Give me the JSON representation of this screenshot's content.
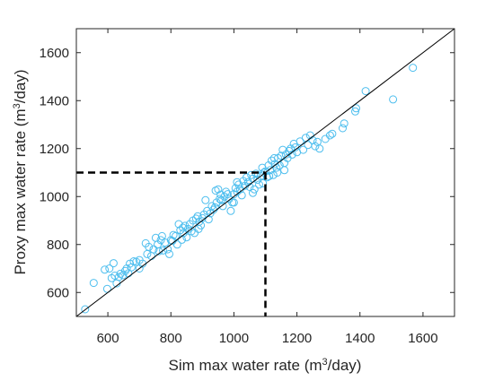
{
  "chart_data": {
    "type": "scatter",
    "title": "",
    "xlabel_pre": "Sim max water rate (m",
    "xlabel_sup": "3",
    "xlabel_post": "/day)",
    "ylabel_pre": "Proxy max water rate (m",
    "ylabel_sup": "3",
    "ylabel_post": "/day)",
    "xlim": [
      500,
      1700
    ],
    "ylim": [
      500,
      1700
    ],
    "xticks": [
      600,
      800,
      1000,
      1200,
      1400,
      1600
    ],
    "yticks": [
      600,
      800,
      1000,
      1200,
      1400,
      1600
    ],
    "xtick_labels": [
      "600",
      "800",
      "1000",
      "1200",
      "1400",
      "1600"
    ],
    "ytick_labels": [
      "600",
      "800",
      "1000",
      "1200",
      "1400",
      "1600"
    ],
    "grid": false,
    "marker_color": "#4DBEEE",
    "reference_line": {
      "from": [
        500,
        500
      ],
      "to": [
        1700,
        1700
      ],
      "color": "#000000"
    },
    "threshold": {
      "x": 1100,
      "y": 1100,
      "color": "#000000",
      "style": "dashed"
    },
    "points": [
      [
        528,
        530
      ],
      [
        555,
        640
      ],
      [
        590,
        695
      ],
      [
        598,
        615
      ],
      [
        605,
        700
      ],
      [
        612,
        660
      ],
      [
        618,
        722
      ],
      [
        622,
        670
      ],
      [
        628,
        638
      ],
      [
        635,
        665
      ],
      [
        640,
        678
      ],
      [
        648,
        672
      ],
      [
        655,
        690
      ],
      [
        660,
        700
      ],
      [
        665,
        680
      ],
      [
        670,
        720
      ],
      [
        675,
        705
      ],
      [
        682,
        730
      ],
      [
        690,
        728
      ],
      [
        700,
        735
      ],
      [
        710,
        720
      ],
      [
        720,
        805
      ],
      [
        730,
        790
      ],
      [
        738,
        752
      ],
      [
        745,
        780
      ],
      [
        752,
        828
      ],
      [
        758,
        800
      ],
      [
        762,
        772
      ],
      [
        768,
        818
      ],
      [
        775,
        775
      ],
      [
        782,
        808
      ],
      [
        790,
        780
      ],
      [
        795,
        760
      ],
      [
        800,
        818
      ],
      [
        808,
        840
      ],
      [
        815,
        835
      ],
      [
        820,
        800
      ],
      [
        825,
        885
      ],
      [
        830,
        860
      ],
      [
        835,
        820
      ],
      [
        840,
        848
      ],
      [
        845,
        878
      ],
      [
        850,
        830
      ],
      [
        855,
        865
      ],
      [
        860,
        885
      ],
      [
        865,
        855
      ],
      [
        870,
        900
      ],
      [
        875,
        848
      ],
      [
        880,
        908
      ],
      [
        885,
        918
      ],
      [
        890,
        895
      ],
      [
        895,
        880
      ],
      [
        900,
        910
      ],
      [
        905,
        925
      ],
      [
        910,
        985
      ],
      [
        915,
        940
      ],
      [
        920,
        905
      ],
      [
        925,
        930
      ],
      [
        930,
        960
      ],
      [
        935,
        945
      ],
      [
        940,
        955
      ],
      [
        945,
        975
      ],
      [
        950,
        1030
      ],
      [
        955,
        990
      ],
      [
        960,
        985
      ],
      [
        965,
        960
      ],
      [
        970,
        1000
      ],
      [
        975,
        1020
      ],
      [
        980,
        1010
      ],
      [
        985,
        990
      ],
      [
        990,
        940
      ],
      [
        995,
        975
      ],
      [
        1000,
        1010
      ],
      [
        1005,
        1035
      ],
      [
        1010,
        1020
      ],
      [
        1015,
        1050
      ],
      [
        1020,
        1030
      ],
      [
        1025,
        1005
      ],
      [
        1030,
        1065
      ],
      [
        1035,
        1045
      ],
      [
        1040,
        1080
      ],
      [
        1045,
        1060
      ],
      [
        1050,
        1040
      ],
      [
        1055,
        1090
      ],
      [
        1060,
        1075
      ],
      [
        1065,
        1030
      ],
      [
        1070,
        1095
      ],
      [
        1075,
        1070
      ],
      [
        1080,
        1050
      ],
      [
        1085,
        1085
      ],
      [
        1090,
        1120
      ],
      [
        1095,
        1100
      ],
      [
        1100,
        1105
      ],
      [
        1105,
        1080
      ],
      [
        1110,
        1130
      ],
      [
        1115,
        1110
      ],
      [
        1120,
        1150
      ],
      [
        1125,
        1090
      ],
      [
        1130,
        1135
      ],
      [
        1135,
        1120
      ],
      [
        1140,
        1160
      ],
      [
        1145,
        1130
      ],
      [
        1150,
        1170
      ],
      [
        1155,
        1195
      ],
      [
        1160,
        1140
      ],
      [
        1165,
        1175
      ],
      [
        1170,
        1160
      ],
      [
        1175,
        1190
      ],
      [
        1180,
        1200
      ],
      [
        1185,
        1175
      ],
      [
        1190,
        1220
      ],
      [
        1195,
        1205
      ],
      [
        1200,
        1185
      ],
      [
        1210,
        1230
      ],
      [
        1220,
        1195
      ],
      [
        1228,
        1245
      ],
      [
        1235,
        1215
      ],
      [
        1242,
        1255
      ],
      [
        1250,
        1235
      ],
      [
        1258,
        1210
      ],
      [
        1265,
        1228
      ],
      [
        1272,
        1200
      ],
      [
        1290,
        1240
      ],
      [
        1305,
        1255
      ],
      [
        1312,
        1262
      ],
      [
        1345,
        1285
      ],
      [
        1350,
        1305
      ],
      [
        1385,
        1355
      ],
      [
        1388,
        1368
      ],
      [
        1418,
        1440
      ],
      [
        1505,
        1405
      ],
      [
        1568,
        1537
      ],
      [
        700,
        700
      ],
      [
        772,
        835
      ],
      [
        838,
        870
      ],
      [
        888,
        865
      ],
      [
        958,
        1008
      ],
      [
        1000,
        975
      ],
      [
        1010,
        1060
      ],
      [
        1112,
        1085
      ],
      [
        1128,
        1160
      ],
      [
        1160,
        1110
      ],
      [
        725,
        760
      ],
      [
        805,
        815
      ],
      [
        942,
        1025
      ],
      [
        1060,
        1015
      ],
      [
        1092,
        1055
      ],
      [
        1138,
        1100
      ]
    ]
  }
}
